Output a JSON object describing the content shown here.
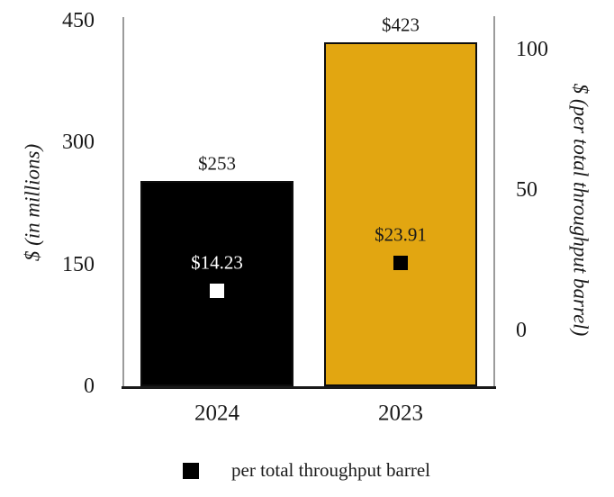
{
  "chart_data": {
    "type": "bar",
    "categories": [
      "2024",
      "2023"
    ],
    "bar_series": {
      "name": "$ (in millions)",
      "axis": "left",
      "values": [
        253,
        423
      ],
      "data_labels": [
        "$253",
        "$423"
      ],
      "bar_colors": [
        "#000000",
        "#E2A611"
      ],
      "bar_border_color": "#0D0D0D"
    },
    "marker_series": {
      "name": "per total throughput barrel",
      "axis": "right",
      "marker_shape": "square",
      "values": [
        14.23,
        23.91
      ],
      "data_labels": [
        "$14.23",
        "$23.91"
      ],
      "label_colors": [
        "#FFFFFF",
        "#1A1A1A"
      ],
      "marker_colors": [
        "#FFFFFF",
        "#000000"
      ]
    },
    "left_axis": {
      "title": "$ (in millions)",
      "ticks": [
        "0",
        "150",
        "300",
        "450"
      ],
      "tick_values": [
        0,
        150,
        300,
        450
      ],
      "range": [
        0,
        450
      ]
    },
    "right_axis": {
      "title": "$ (per total throughput barrel)",
      "ticks": [
        "0",
        "50",
        "100"
      ],
      "tick_values": [
        0,
        50,
        100
      ],
      "range": [
        0,
        100
      ]
    },
    "legend": {
      "position": "bottom",
      "items": [
        {
          "label": "per total throughput barrel",
          "marker_color": "#000000"
        }
      ]
    },
    "grid": false,
    "background": "#FFFFFF",
    "axis_line_color": "#9B9B9B",
    "x_axis_line_color": "#1A1A1A",
    "text_color": "#1A1A1A"
  }
}
